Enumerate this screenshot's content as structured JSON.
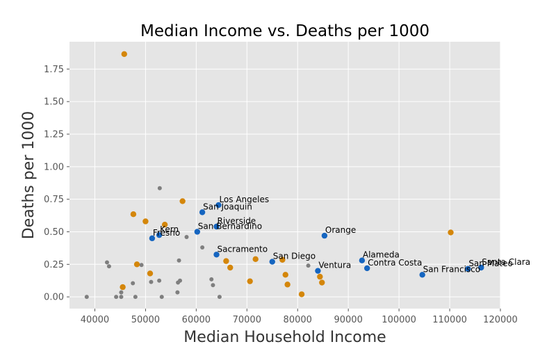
{
  "chart_data": {
    "type": "scatter",
    "title": "Median Income vs. Deaths per 1000",
    "xlabel": "Median Household Income",
    "ylabel": "Deaths per 1000",
    "xlim": [
      35000,
      120000
    ],
    "ylim": [
      -0.09,
      1.96
    ],
    "xticks": [
      40000,
      50000,
      60000,
      70000,
      80000,
      90000,
      100000,
      110000,
      120000
    ],
    "yticks": [
      0.0,
      0.25,
      0.5,
      0.75,
      1.0,
      1.25,
      1.5,
      1.75
    ],
    "xtick_labels": [
      "40000",
      "50000",
      "60000",
      "70000",
      "80000",
      "90000",
      "100000",
      "110000",
      "120000"
    ],
    "ytick_labels": [
      "0.00",
      "0.25",
      "0.50",
      "0.75",
      "1.00",
      "1.25",
      "1.50",
      "1.75"
    ],
    "grid": true,
    "colors": {
      "background": "#e5e5e5",
      "grid": "#ffffff",
      "labeled": "#1565c0",
      "orange": "#d4860a",
      "gray": "#7f7f7f"
    },
    "series": [
      {
        "group": "labeled",
        "points": [
          {
            "x": 64400,
            "y": 0.705,
            "label": "Los Angeles"
          },
          {
            "x": 61200,
            "y": 0.65,
            "label": "San Joaquin"
          },
          {
            "x": 64000,
            "y": 0.54,
            "label": "Riverside"
          },
          {
            "x": 60200,
            "y": 0.5,
            "label": "San Bernardino"
          },
          {
            "x": 52700,
            "y": 0.475,
            "label": "Kern"
          },
          {
            "x": 51300,
            "y": 0.45,
            "label": "Fresno"
          },
          {
            "x": 64000,
            "y": 0.325,
            "label": "Sacramento"
          },
          {
            "x": 75000,
            "y": 0.27,
            "label": "San Diego"
          },
          {
            "x": 85300,
            "y": 0.47,
            "label": "Orange"
          },
          {
            "x": 92700,
            "y": 0.28,
            "label": "Alameda"
          },
          {
            "x": 84000,
            "y": 0.2,
            "label": "Ventura"
          },
          {
            "x": 93700,
            "y": 0.22,
            "label": "Contra Costa"
          },
          {
            "x": 104600,
            "y": 0.17,
            "label": "San Francisco"
          },
          {
            "x": 113600,
            "y": 0.215,
            "label": "San Mateo"
          },
          {
            "x": 116200,
            "y": 0.225,
            "label": "Santa Clara"
          }
        ]
      },
      {
        "group": "orange",
        "points": [
          {
            "x": 45800,
            "y": 1.865
          },
          {
            "x": 57300,
            "y": 0.735
          },
          {
            "x": 47600,
            "y": 0.635
          },
          {
            "x": 50000,
            "y": 0.58
          },
          {
            "x": 53800,
            "y": 0.555
          },
          {
            "x": 110200,
            "y": 0.495
          },
          {
            "x": 71700,
            "y": 0.29
          },
          {
            "x": 77000,
            "y": 0.285
          },
          {
            "x": 65900,
            "y": 0.275
          },
          {
            "x": 48300,
            "y": 0.25
          },
          {
            "x": 66700,
            "y": 0.225
          },
          {
            "x": 50900,
            "y": 0.18
          },
          {
            "x": 77600,
            "y": 0.17
          },
          {
            "x": 84400,
            "y": 0.155
          },
          {
            "x": 70600,
            "y": 0.12
          },
          {
            "x": 84800,
            "y": 0.11
          },
          {
            "x": 78000,
            "y": 0.095
          },
          {
            "x": 45500,
            "y": 0.075
          },
          {
            "x": 80800,
            "y": 0.02
          }
        ]
      },
      {
        "group": "gray",
        "points": [
          {
            "x": 52800,
            "y": 0.835
          },
          {
            "x": 58100,
            "y": 0.46
          },
          {
            "x": 61200,
            "y": 0.38
          },
          {
            "x": 56600,
            "y": 0.28
          },
          {
            "x": 42400,
            "y": 0.265
          },
          {
            "x": 42800,
            "y": 0.235
          },
          {
            "x": 49200,
            "y": 0.245
          },
          {
            "x": 82100,
            "y": 0.24
          },
          {
            "x": 63000,
            "y": 0.135
          },
          {
            "x": 52700,
            "y": 0.125
          },
          {
            "x": 56800,
            "y": 0.125
          },
          {
            "x": 51100,
            "y": 0.115
          },
          {
            "x": 56400,
            "y": 0.11
          },
          {
            "x": 47500,
            "y": 0.105
          },
          {
            "x": 63300,
            "y": 0.09
          },
          {
            "x": 56300,
            "y": 0.035
          },
          {
            "x": 45200,
            "y": 0.035
          },
          {
            "x": 38400,
            "y": 0.0
          },
          {
            "x": 44200,
            "y": 0.0
          },
          {
            "x": 45200,
            "y": 0.0
          },
          {
            "x": 48000,
            "y": 0.0
          },
          {
            "x": 53200,
            "y": 0.0
          },
          {
            "x": 64600,
            "y": 0.0
          }
        ]
      }
    ]
  }
}
